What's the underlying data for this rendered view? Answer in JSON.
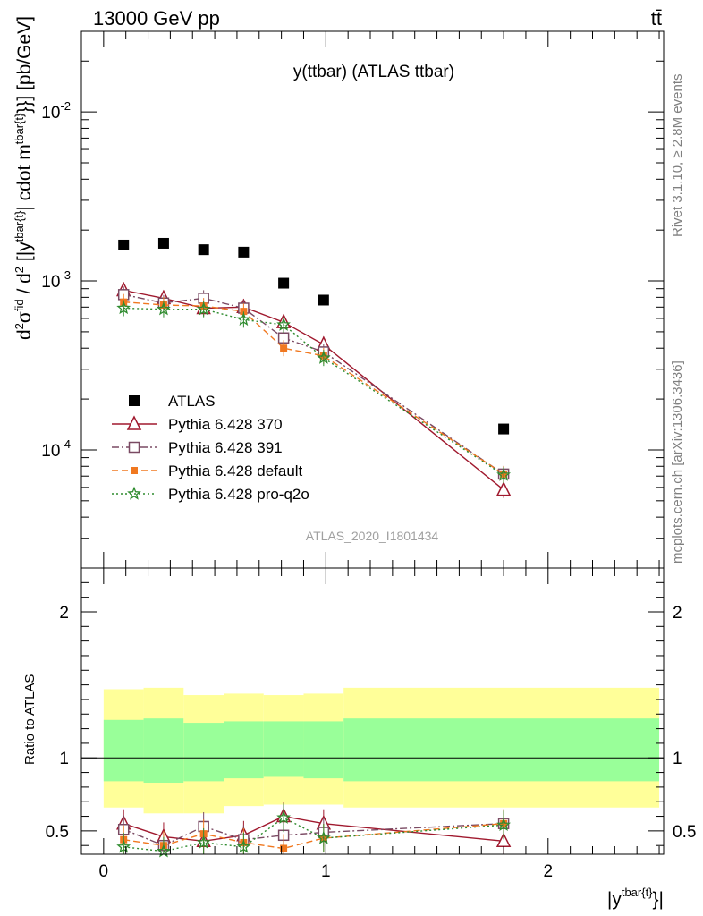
{
  "header": {
    "left": "13000 GeV pp",
    "right": "tt̄"
  },
  "side_labels": {
    "rivet": "Rivet 3.1.10, ≥ 2.8M events",
    "mcplots": "mcplots.cern.ch [arXiv:1306.3436]"
  },
  "chart_data": [
    {
      "type": "scatter",
      "title": "y(ttbar) (ATLAS ttbar)",
      "watermark": "ATLAS_2020_I1801434",
      "ylabel": "d²σᶠⁱᵈ / d² |y tbar{t}| cdot m tbar{t}}}} [pb/GeV]",
      "yscale": "log",
      "xlim": [
        -0.1,
        2.52
      ],
      "ylim": [
        2e-05,
        0.03
      ],
      "ytick_labels": [
        "10^{-4}",
        "10^{-3}",
        "10^{-2}"
      ],
      "legend_position": "bottom-left",
      "series": [
        {
          "name": "ATLAS",
          "color": "#000000",
          "marker": "filled-square",
          "x": [
            0.09,
            0.27,
            0.45,
            0.63,
            0.81,
            0.99,
            1.8
          ],
          "y": [
            0.00163,
            0.00167,
            0.00153,
            0.00148,
            0.00097,
            0.00077,
            0.000133
          ]
        },
        {
          "name": "Pythia 6.428 370",
          "color": "#a0192e",
          "marker": "open-triangle",
          "line": "solid",
          "x": [
            0.09,
            0.27,
            0.45,
            0.63,
            0.81,
            0.99,
            1.8
          ],
          "y": [
            0.00088,
            0.00079,
            0.00069,
            0.0007,
            0.00057,
            0.00042,
            5.8e-05
          ]
        },
        {
          "name": "Pythia 6.428 391",
          "color": "#7a4a63",
          "marker": "open-square",
          "line": "dashdot",
          "x": [
            0.09,
            0.27,
            0.45,
            0.63,
            0.81,
            0.99,
            1.8
          ],
          "y": [
            0.00083,
            0.00074,
            0.00079,
            0.00069,
            0.00046,
            0.00038,
            7.2e-05
          ]
        },
        {
          "name": "Pythia 6.428 default",
          "color": "#f07820",
          "marker": "filled-square-small",
          "line": "dashed",
          "x": [
            0.09,
            0.27,
            0.45,
            0.63,
            0.81,
            0.99,
            1.8
          ],
          "y": [
            0.00075,
            0.00072,
            0.00071,
            0.00066,
            0.0004,
            0.00036,
            7.2e-05
          ]
        },
        {
          "name": "Pythia 6.428 pro-q2o",
          "color": "#2e8b2e",
          "marker": "star",
          "line": "dotted",
          "x": [
            0.09,
            0.27,
            0.45,
            0.63,
            0.81,
            0.99,
            1.8
          ],
          "y": [
            0.00069,
            0.00068,
            0.00068,
            0.00059,
            0.00055,
            0.00035,
            7.1e-05
          ]
        }
      ]
    },
    {
      "type": "scatter",
      "ylabel": "Ratio to ATLAS",
      "xlabel": "|y^{tbar{t}}|",
      "xlim": [
        -0.1,
        2.52
      ],
      "ylim": [
        0.34,
        2.3
      ],
      "ytick_labels": [
        "0.5",
        "1",
        "2"
      ],
      "xtick_labels": [
        "0",
        "1",
        "2"
      ],
      "bands": {
        "bin_edges": [
          0.0,
          0.18,
          0.36,
          0.54,
          0.72,
          0.9,
          1.08,
          2.5
        ],
        "yellow_low": [
          0.66,
          0.62,
          0.62,
          0.67,
          0.68,
          0.68,
          0.66
        ],
        "yellow_high": [
          1.47,
          1.48,
          1.43,
          1.44,
          1.43,
          1.44,
          1.48
        ],
        "green_low": [
          0.84,
          0.83,
          0.84,
          0.86,
          0.87,
          0.86,
          0.84
        ],
        "green_high": [
          1.26,
          1.27,
          1.24,
          1.25,
          1.25,
          1.25,
          1.27
        ],
        "yellow_color": "#ffff99",
        "green_color": "#99ff99"
      },
      "series": [
        {
          "name": "Pythia 6.428 370",
          "color": "#a0192e",
          "x": [
            0.09,
            0.27,
            0.45,
            0.63,
            0.81,
            0.99,
            1.8
          ],
          "y": [
            0.55,
            0.46,
            0.43,
            0.47,
            0.6,
            0.55,
            0.43
          ]
        },
        {
          "name": "Pythia 6.428 391",
          "color": "#7a4a63",
          "x": [
            0.09,
            0.27,
            0.45,
            0.63,
            0.81,
            0.99,
            1.8
          ],
          "y": [
            0.51,
            0.4,
            0.53,
            0.44,
            0.47,
            0.49,
            0.55
          ]
        },
        {
          "name": "Pythia 6.428 default",
          "color": "#f07820",
          "x": [
            0.09,
            0.27,
            0.45,
            0.63,
            0.81,
            0.99,
            1.8
          ],
          "y": [
            0.44,
            0.4,
            0.48,
            0.42,
            0.38,
            0.45,
            0.55
          ]
        },
        {
          "name": "Pythia 6.428 pro-q2o",
          "color": "#2e8b2e",
          "x": [
            0.09,
            0.27,
            0.45,
            0.63,
            0.81,
            0.99,
            1.8
          ],
          "y": [
            0.39,
            0.36,
            0.42,
            0.39,
            0.59,
            0.45,
            0.54
          ]
        }
      ]
    }
  ]
}
